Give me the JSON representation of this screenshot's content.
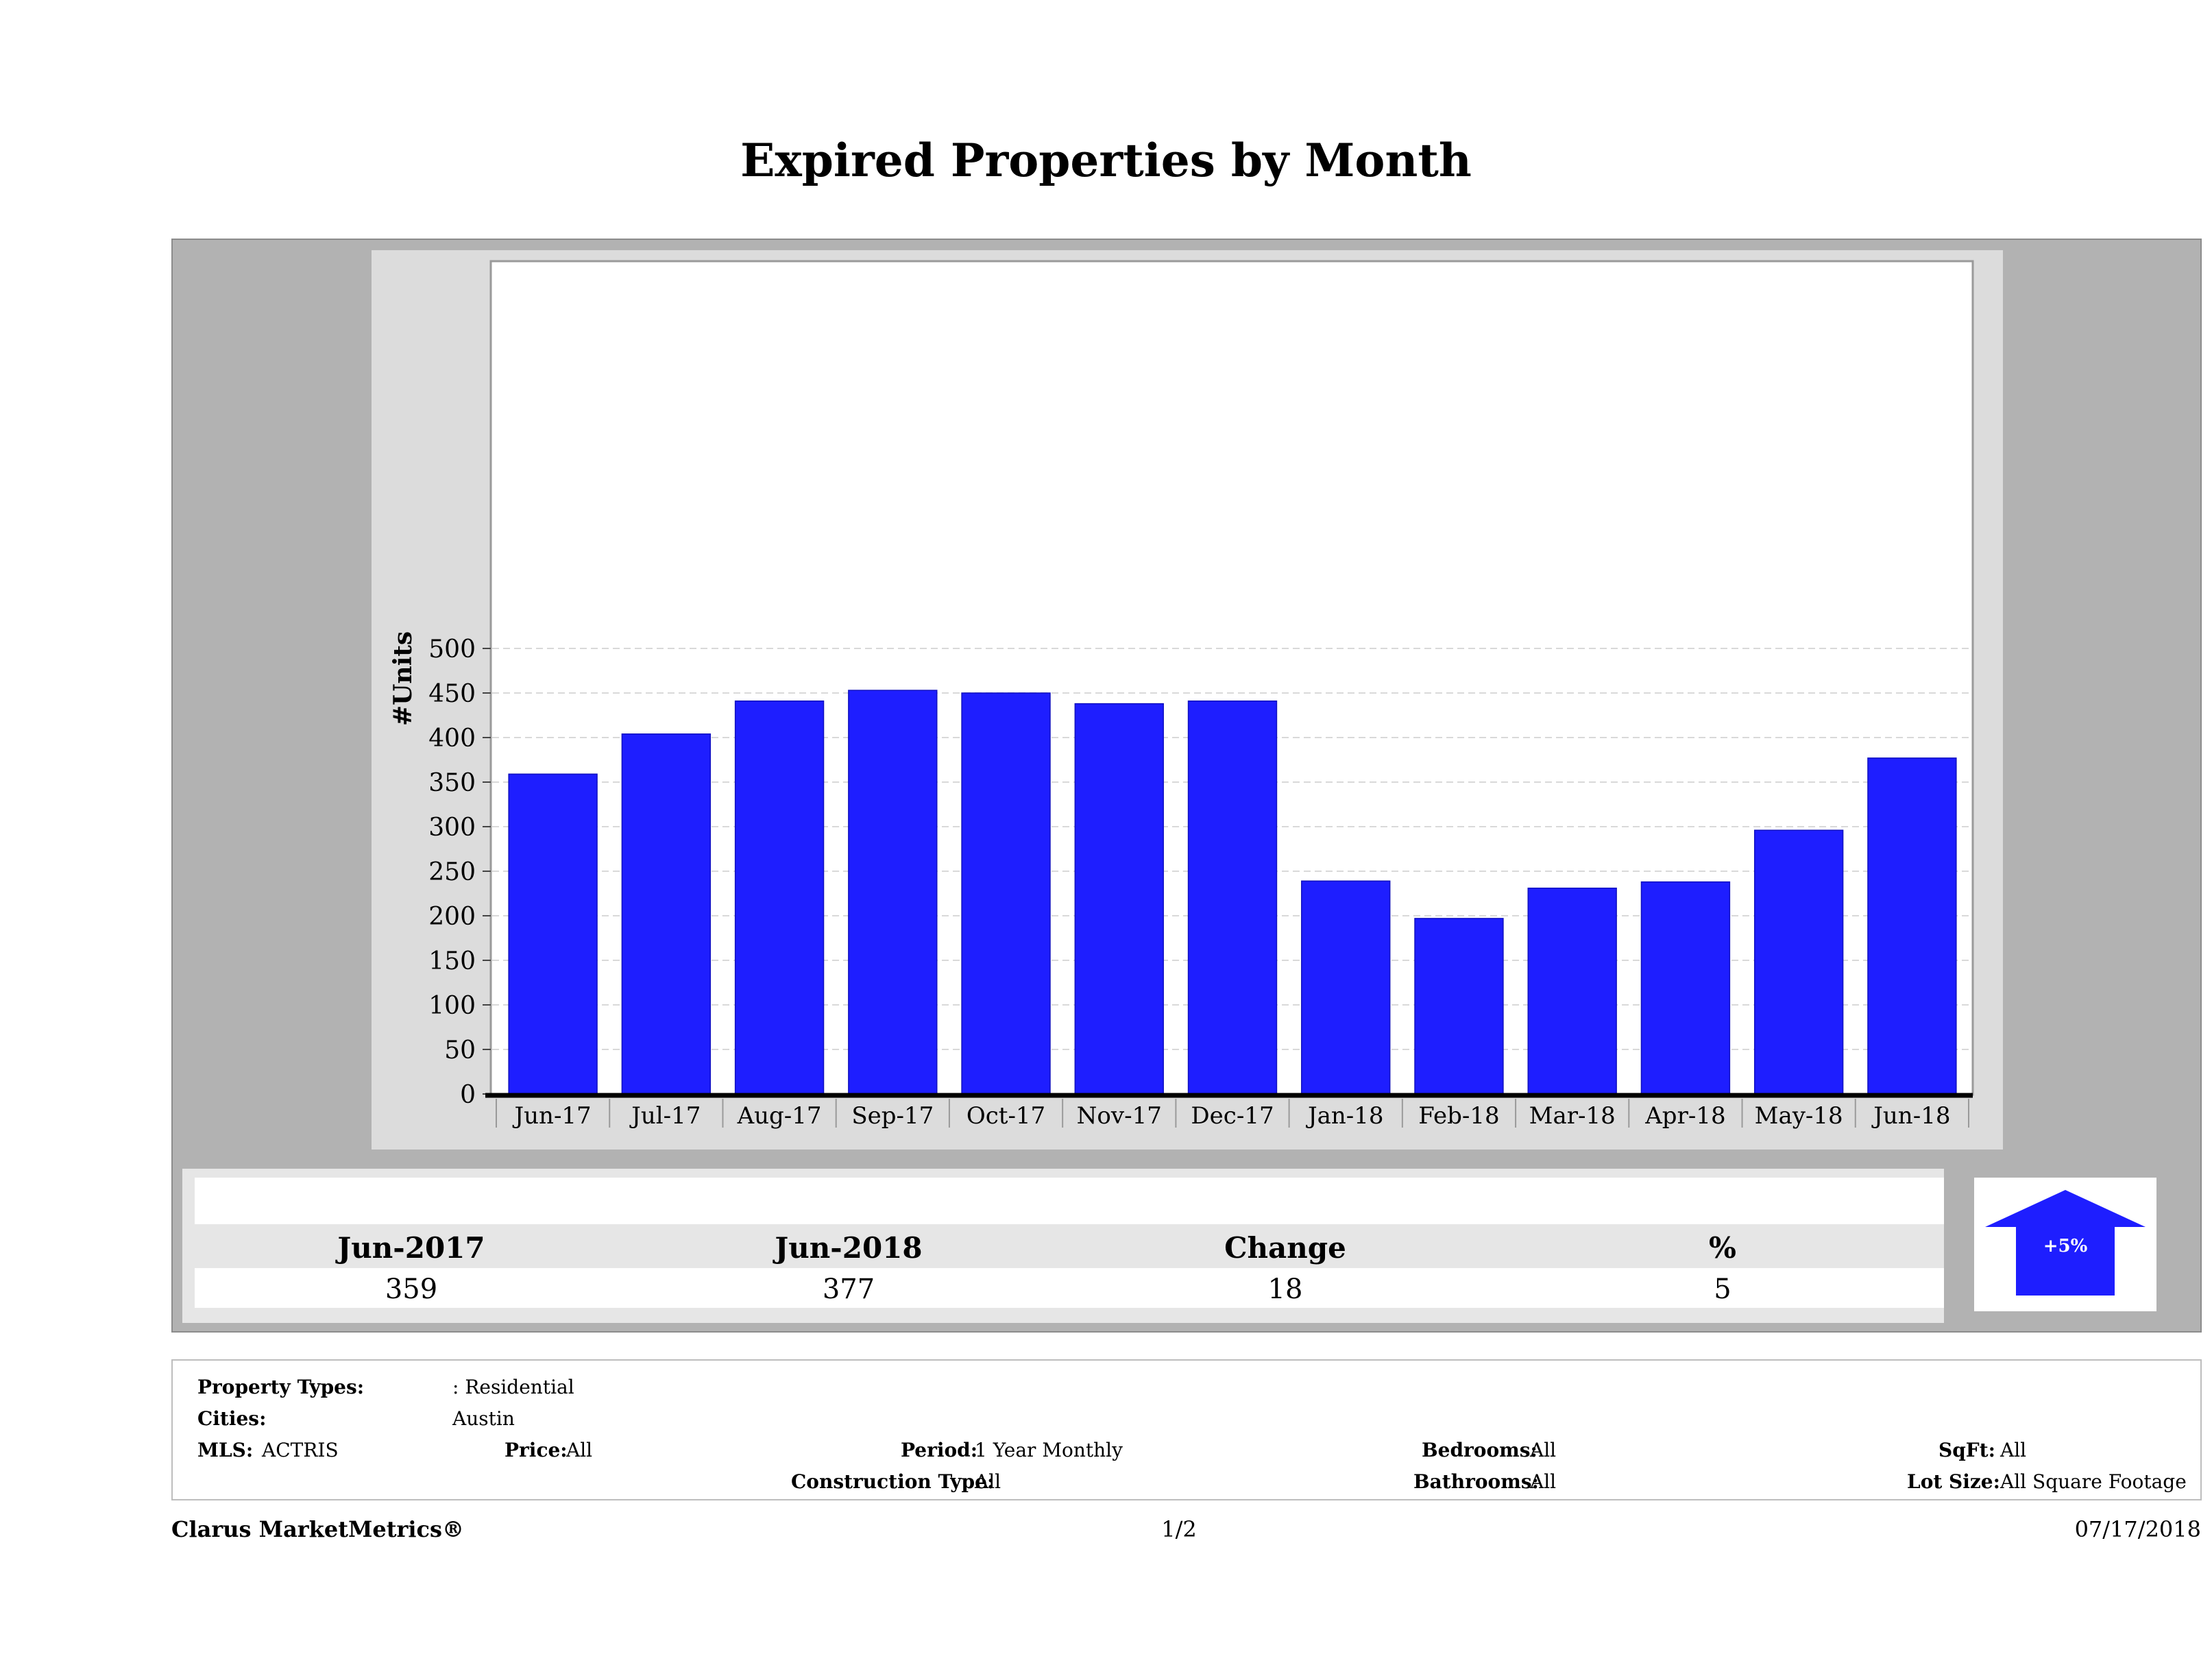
{
  "title": "Expired Properties by Month",
  "chart_data": {
    "type": "bar",
    "categories": [
      "Jun-17",
      "Jul-17",
      "Aug-17",
      "Sep-17",
      "Oct-17",
      "Nov-17",
      "Dec-17",
      "Jan-18",
      "Feb-18",
      "Mar-18",
      "Apr-18",
      "May-18",
      "Jun-18"
    ],
    "values": [
      359,
      404,
      441,
      453,
      450,
      438,
      441,
      239,
      197,
      231,
      238,
      296,
      377
    ],
    "ylabel": "#Units",
    "ylim": [
      0,
      540
    ],
    "yticks": [
      0,
      50,
      100,
      150,
      200,
      250,
      300,
      350,
      400,
      450,
      500
    ],
    "grid": true,
    "colors": {
      "bar": "#1e1eff",
      "grid": "#d9d9d9"
    }
  },
  "stats": {
    "headers": [
      "Jun-2017",
      "Jun-2018",
      "Change",
      "%"
    ],
    "values": [
      "359",
      "377",
      "18",
      "5"
    ],
    "badge": "+5%",
    "badge_icon": "up-arrow-icon",
    "badge_color": "#1e1eff"
  },
  "criteria": {
    "property_types_label": "Property Types:",
    "property_types_value": ": Residential",
    "cities_label": "Cities:",
    "cities_value": "Austin",
    "mls_label": "MLS:",
    "mls_value": "ACTRIS",
    "price_label": "Price:",
    "price_value": "All",
    "period_label": "Period:",
    "period_value": "1 Year Monthly",
    "construction_label": "Construction Type:",
    "construction_value": "All",
    "bedrooms_label": "Bedrooms:",
    "bedrooms_value": "All",
    "bathrooms_label": "Bathrooms:",
    "bathrooms_value": "All",
    "sqft_label": "SqFt:",
    "sqft_value": "All",
    "lotsize_label": "Lot Size:",
    "lotsize_value": "All Square Footage"
  },
  "footer": {
    "brand": "Clarus MarketMetrics®",
    "page": "1/2",
    "date": "07/17/2018"
  }
}
